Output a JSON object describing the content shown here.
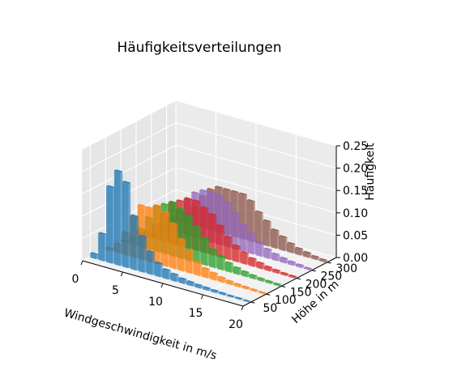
{
  "chart_data": {
    "type": "bar",
    "title": "Häufigkeitsverteilungen",
    "xlabel": "Windgeschwindigkeit in m/s",
    "ylabel": "Höhe in m",
    "zlabel": "Häufigkeit",
    "x_ticks": [
      "0",
      "5",
      "10",
      "15",
      "20"
    ],
    "y_ticks": [
      "50",
      "100",
      "150",
      "200",
      "250",
      "300"
    ],
    "z_ticks": [
      "0.00",
      "0.05",
      "0.10",
      "0.15",
      "0.20",
      "0.25"
    ],
    "xlim": [
      0,
      20
    ],
    "ylim": [
      25,
      330
    ],
    "zlim": [
      0,
      0.25
    ],
    "grid": true,
    "x": [
      0.5,
      1.5,
      2.5,
      3.5,
      4.5,
      5.5,
      6.5,
      7.5,
      8.5,
      9.5,
      10.5,
      11.5,
      12.5,
      13.5,
      14.5,
      15.5,
      16.5,
      17.5,
      18.5,
      19.5
    ],
    "series": [
      {
        "height": 50,
        "color": "#1f77b4",
        "values": [
          0.01,
          0.06,
          0.17,
          0.21,
          0.19,
          0.12,
          0.08,
          0.05,
          0.03,
          0.02,
          0.015,
          0.01,
          0.008,
          0.006,
          0.005,
          0.004,
          0.003,
          0.002,
          0.002,
          0.001
        ]
      },
      {
        "height": 100,
        "color": "#ff7f0e",
        "values": [
          0.005,
          0.02,
          0.05,
          0.09,
          0.12,
          0.12,
          0.13,
          0.12,
          0.1,
          0.07,
          0.05,
          0.03,
          0.02,
          0.015,
          0.01,
          0.007,
          0.005,
          0.004,
          0.003,
          0.002
        ]
      },
      {
        "height": 150,
        "color": "#2ca02c",
        "values": [
          0.004,
          0.015,
          0.04,
          0.07,
          0.1,
          0.11,
          0.12,
          0.11,
          0.1,
          0.08,
          0.06,
          0.04,
          0.03,
          0.02,
          0.014,
          0.01,
          0.007,
          0.005,
          0.004,
          0.003
        ]
      },
      {
        "height": 200,
        "color": "#d62728",
        "values": [
          0.004,
          0.012,
          0.03,
          0.06,
          0.09,
          0.1,
          0.11,
          0.11,
          0.1,
          0.09,
          0.07,
          0.05,
          0.035,
          0.025,
          0.017,
          0.012,
          0.008,
          0.006,
          0.004,
          0.003
        ]
      },
      {
        "height": 250,
        "color": "#9467bd",
        "values": [
          0.003,
          0.01,
          0.025,
          0.05,
          0.08,
          0.1,
          0.11,
          0.11,
          0.11,
          0.1,
          0.08,
          0.06,
          0.045,
          0.03,
          0.02,
          0.014,
          0.01,
          0.007,
          0.005,
          0.003
        ]
      },
      {
        "height": 300,
        "color": "#8c564b",
        "values": [
          0.003,
          0.008,
          0.02,
          0.04,
          0.07,
          0.09,
          0.1,
          0.1,
          0.1,
          0.1,
          0.09,
          0.07,
          0.055,
          0.04,
          0.03,
          0.02,
          0.014,
          0.01,
          0.006,
          0.004
        ]
      }
    ]
  }
}
